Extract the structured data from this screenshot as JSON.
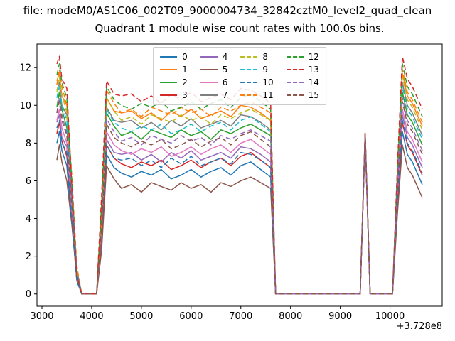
{
  "figure": {
    "suptitle": "file: modeM0/AS1C06_002T09_9000004734_32842cztM0_level2_quad_clean",
    "title": "Quadrant 1 module wise count rates with 100.0s bins."
  },
  "chart_data": {
    "type": "line",
    "title": "Quadrant 1 module wise count rates with 100.0s bins.",
    "suptitle": "file: modeM0/AS1C06_002T09_9000004734_32842cztM0_level2_quad_clean",
    "xlabel": "",
    "ylabel": "",
    "x_offset_label": "+3.728e8",
    "xlim": [
      2900,
      11050
    ],
    "ylim": [
      -0.65,
      13.25
    ],
    "x_ticks": [
      3000,
      4000,
      5000,
      6000,
      7000,
      8000,
      9000,
      10000
    ],
    "y_ticks": [
      0,
      2,
      4,
      6,
      8,
      10,
      12
    ],
    "grid": false,
    "legend": {
      "position": "upper center",
      "ncol": 4
    },
    "x": [
      3300,
      3350,
      3400,
      3500,
      3600,
      3700,
      3800,
      3950,
      4100,
      4200,
      4300,
      4450,
      4600,
      4800,
      5000,
      5200,
      5400,
      5600,
      5800,
      6000,
      6200,
      6400,
      6600,
      6800,
      7000,
      7200,
      7400,
      7600,
      7700,
      8000,
      8400,
      8800,
      9200,
      9400,
      9500,
      9600,
      9800,
      10050,
      10150,
      10250,
      10350,
      10450,
      10550,
      10650
    ],
    "series": [
      {
        "name": "0",
        "color": "#1f77b4",
        "dash": false,
        "values": [
          8.0,
          8.6,
          7.6,
          6.8,
          3.8,
          0.8,
          0,
          0,
          0,
          2.9,
          7.4,
          6.7,
          6.4,
          6.2,
          6.5,
          6.3,
          6.6,
          6.1,
          6.3,
          6.6,
          6.2,
          6.5,
          6.7,
          6.3,
          6.8,
          7.0,
          6.6,
          6.2,
          0,
          0,
          0,
          0,
          0,
          0,
          8.4,
          0,
          0,
          0,
          4.7,
          8.6,
          7.4,
          7.0,
          6.4,
          5.8
        ]
      },
      {
        "name": "1",
        "color": "#ff7f0e",
        "dash": false,
        "values": [
          11.3,
          11.7,
          10.5,
          10.0,
          5.2,
          1.0,
          0,
          0,
          0,
          4.8,
          10.4,
          9.7,
          9.6,
          9.7,
          9.3,
          9.6,
          9.2,
          9.7,
          9.4,
          9.8,
          9.3,
          9.5,
          9.7,
          9.4,
          10.0,
          9.9,
          9.6,
          9.2,
          0,
          0,
          0,
          0,
          0,
          0,
          8.5,
          0,
          0,
          0,
          6.4,
          11.7,
          10.5,
          10.1,
          9.5,
          8.9
        ]
      },
      {
        "name": "2",
        "color": "#2ca02c",
        "dash": false,
        "values": [
          9.9,
          10.7,
          9.8,
          8.8,
          5.5,
          1.3,
          0,
          0,
          0,
          3.4,
          9.6,
          8.9,
          8.4,
          8.6,
          8.2,
          8.7,
          8.5,
          8.3,
          8.7,
          8.4,
          8.6,
          8.2,
          8.7,
          8.5,
          8.8,
          9.0,
          8.7,
          8.4,
          0,
          0,
          0,
          0,
          0,
          0,
          8.5,
          0,
          0,
          0,
          5.9,
          10.7,
          9.5,
          9.1,
          8.5,
          7.9
        ]
      },
      {
        "name": "3",
        "color": "#d62728",
        "dash": false,
        "values": [
          8.5,
          9.1,
          8.1,
          7.3,
          4.1,
          0.8,
          0,
          0,
          0,
          3.1,
          7.9,
          7.2,
          6.9,
          6.7,
          7.0,
          6.8,
          7.1,
          6.6,
          6.8,
          7.1,
          6.7,
          7.0,
          7.2,
          6.8,
          7.3,
          7.5,
          7.1,
          6.7,
          0,
          0,
          0,
          0,
          0,
          0,
          8.4,
          0,
          0,
          0,
          5.0,
          9.1,
          7.9,
          7.5,
          6.9,
          6.3
        ]
      },
      {
        "name": "4",
        "color": "#9467bd",
        "dash": false,
        "values": [
          9.1,
          9.5,
          8.3,
          7.8,
          4.0,
          0.7,
          0,
          0,
          0,
          3.7,
          8.2,
          7.5,
          7.4,
          7.5,
          7.1,
          7.4,
          7.0,
          7.5,
          7.2,
          7.6,
          7.1,
          7.3,
          7.5,
          7.2,
          7.8,
          7.7,
          7.4,
          7.0,
          0,
          0,
          0,
          0,
          0,
          0,
          8.4,
          0,
          0,
          0,
          5.2,
          9.5,
          8.3,
          7.9,
          7.3,
          6.7
        ]
      },
      {
        "name": "5",
        "color": "#8c564b",
        "dash": false,
        "values": [
          7.1,
          7.9,
          7.0,
          6.0,
          3.7,
          0.9,
          0,
          0,
          0,
          2.3,
          6.8,
          6.1,
          5.6,
          5.8,
          5.4,
          5.9,
          5.7,
          5.5,
          5.9,
          5.6,
          5.8,
          5.4,
          5.9,
          5.7,
          6.0,
          6.2,
          5.9,
          5.6,
          0,
          0,
          0,
          0,
          0,
          0,
          8.3,
          0,
          0,
          0,
          4.3,
          7.9,
          6.7,
          6.3,
          5.7,
          5.1
        ]
      },
      {
        "name": "6",
        "color": "#e377c2",
        "dash": false,
        "values": [
          9.2,
          9.8,
          8.8,
          8.0,
          4.6,
          0.9,
          0,
          0,
          0,
          3.4,
          8.6,
          7.9,
          7.6,
          7.4,
          7.7,
          7.5,
          7.8,
          7.3,
          7.5,
          7.8,
          7.4,
          7.7,
          7.9,
          7.5,
          8.0,
          8.2,
          7.8,
          7.4,
          0,
          0,
          0,
          0,
          0,
          0,
          8.4,
          0,
          0,
          0,
          5.4,
          9.8,
          8.6,
          8.2,
          7.6,
          7.0
        ]
      },
      {
        "name": "7",
        "color": "#7f7f7f",
        "dash": false,
        "values": [
          10.8,
          11.2,
          10.0,
          9.5,
          5.0,
          0.9,
          0,
          0,
          0,
          4.5,
          9.9,
          9.2,
          9.1,
          9.2,
          8.8,
          9.1,
          8.7,
          9.2,
          8.9,
          9.3,
          8.8,
          9.0,
          9.2,
          8.9,
          9.5,
          9.4,
          9.1,
          8.7,
          0,
          0,
          0,
          0,
          0,
          0,
          8.5,
          0,
          0,
          0,
          6.2,
          11.2,
          10.0,
          9.6,
          9.0,
          8.4
        ]
      },
      {
        "name": "8",
        "color": "#bcbd22",
        "dash": true,
        "values": [
          10.7,
          11.5,
          10.6,
          9.6,
          6.0,
          1.4,
          0,
          0,
          0,
          3.7,
          10.4,
          9.7,
          9.2,
          9.4,
          9.0,
          9.5,
          9.3,
          9.1,
          9.5,
          9.2,
          9.4,
          9.0,
          9.5,
          9.3,
          9.6,
          9.8,
          9.5,
          9.2,
          0,
          0,
          0,
          0,
          0,
          0,
          8.5,
          0,
          0,
          0,
          6.3,
          11.5,
          10.3,
          9.9,
          9.3,
          8.7
        ]
      },
      {
        "name": "9",
        "color": "#17becf",
        "dash": true,
        "values": [
          10.4,
          11.0,
          10.0,
          9.2,
          5.3,
          1.1,
          0,
          0,
          0,
          4.0,
          9.8,
          9.1,
          8.8,
          8.6,
          8.9,
          8.7,
          9.0,
          8.5,
          8.7,
          9.0,
          8.6,
          8.9,
          9.1,
          8.7,
          9.2,
          9.4,
          9.0,
          8.6,
          0,
          0,
          0,
          0,
          0,
          0,
          8.5,
          0,
          0,
          0,
          6.1,
          11.0,
          9.8,
          9.4,
          8.8,
          8.2
        ]
      },
      {
        "name": "10",
        "color": "#1f77b4",
        "dash": true,
        "values": [
          8.8,
          9.2,
          8.0,
          7.5,
          3.9,
          0.7,
          0,
          0,
          0,
          3.5,
          7.9,
          7.2,
          7.1,
          7.2,
          6.8,
          7.1,
          6.7,
          7.2,
          6.9,
          7.3,
          6.8,
          7.0,
          7.2,
          6.9,
          7.5,
          7.4,
          7.1,
          6.7,
          0,
          0,
          0,
          0,
          0,
          0,
          8.4,
          0,
          0,
          0,
          5.1,
          9.2,
          8.0,
          7.6,
          7.0,
          6.4
        ]
      },
      {
        "name": "11",
        "color": "#ff7f0e",
        "dash": true,
        "values": [
          11.1,
          11.9,
          11.0,
          10.0,
          6.3,
          1.5,
          0,
          0,
          0,
          3.9,
          10.8,
          10.1,
          9.6,
          9.8,
          9.4,
          9.9,
          9.7,
          9.5,
          9.9,
          9.6,
          9.8,
          9.4,
          9.9,
          9.7,
          10.0,
          10.2,
          9.9,
          9.6,
          0,
          0,
          0,
          0,
          0,
          0,
          8.5,
          0,
          0,
          0,
          6.5,
          11.9,
          10.7,
          10.3,
          9.7,
          9.1
        ]
      },
      {
        "name": "12",
        "color": "#2ca02c",
        "dash": true,
        "values": [
          11.6,
          12.2,
          11.2,
          10.4,
          6.0,
          1.2,
          0,
          0,
          0,
          4.5,
          11.0,
          10.3,
          10.0,
          9.8,
          10.1,
          9.9,
          10.2,
          9.7,
          9.9,
          10.2,
          9.8,
          10.1,
          10.3,
          9.9,
          10.4,
          10.6,
          10.2,
          9.8,
          0,
          0,
          0,
          0,
          0,
          0,
          8.5,
          0,
          0,
          0,
          6.7,
          12.2,
          11.0,
          10.6,
          10.0,
          9.4
        ]
      },
      {
        "name": "13",
        "color": "#d62728",
        "dash": true,
        "values": [
          12.2,
          12.6,
          11.4,
          10.9,
          5.7,
          1.0,
          0,
          0,
          0,
          5.2,
          11.3,
          10.6,
          10.5,
          10.6,
          10.2,
          10.5,
          10.1,
          10.6,
          10.3,
          10.7,
          10.2,
          10.4,
          10.6,
          10.3,
          10.9,
          10.8,
          10.5,
          10.1,
          0,
          0,
          0,
          0,
          0,
          0,
          8.6,
          0,
          0,
          0,
          6.9,
          12.6,
          11.4,
          11.0,
          10.4,
          9.8
        ]
      },
      {
        "name": "14",
        "color": "#9467bd",
        "dash": true,
        "values": [
          9.6,
          10.4,
          9.5,
          8.5,
          5.3,
          1.2,
          0,
          0,
          0,
          3.3,
          9.3,
          8.6,
          8.1,
          8.3,
          7.9,
          8.4,
          8.2,
          8.0,
          8.4,
          8.1,
          8.3,
          7.9,
          8.4,
          8.2,
          8.5,
          8.7,
          8.4,
          8.1,
          0,
          0,
          0,
          0,
          0,
          0,
          8.4,
          0,
          0,
          0,
          5.7,
          10.4,
          9.2,
          8.8,
          8.2,
          7.6
        ]
      },
      {
        "name": "15",
        "color": "#8c564b",
        "dash": true,
        "values": [
          9.6,
          10.2,
          9.2,
          8.4,
          4.8,
          1.0,
          0,
          0,
          0,
          3.6,
          9.0,
          8.3,
          8.0,
          7.8,
          8.1,
          7.9,
          8.2,
          7.7,
          7.9,
          8.2,
          7.8,
          8.1,
          8.3,
          7.9,
          8.4,
          8.6,
          8.2,
          7.8,
          0,
          0,
          0,
          0,
          0,
          0,
          8.4,
          0,
          0,
          0,
          5.6,
          10.2,
          9.0,
          8.6,
          8.0,
          7.4
        ]
      }
    ]
  }
}
